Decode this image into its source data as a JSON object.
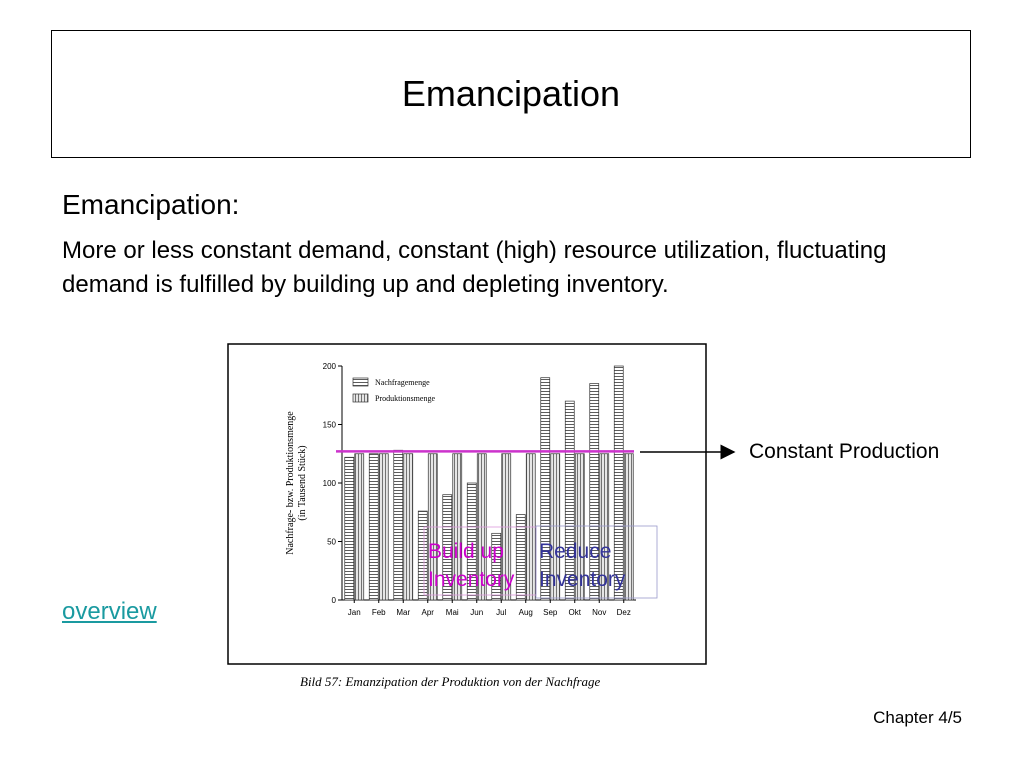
{
  "slide": {
    "title": "Emancipation",
    "heading": "Emancipation:",
    "body": "More or less constant demand, constant (high) resource utilization, fluctuating demand is fulfilled by building up and depleting inventory.",
    "link": "overview",
    "footer": "Chapter 4/5"
  },
  "annotations": {
    "constant_production": "Constant Production",
    "build_up_line1": "Build up",
    "build_up_line2": "Inventory",
    "reduce_line1": "Reduce",
    "reduce_line2": "Inventory",
    "build_up_color": "#cc00cc",
    "reduce_color": "#333399",
    "constant_line_color": "#cc33cc"
  },
  "figure": {
    "caption": "Bild 57: Emanzipation der Produktion von der Nachfrage"
  },
  "chart_data": {
    "type": "bar",
    "ylabel_line1": "Nachfrage- bzw. Produktionsmenge",
    "ylabel_line2": "(in Tausend Stück)",
    "xlabel": "",
    "ylim": [
      0,
      200
    ],
    "y_ticks": [
      0,
      50,
      100,
      150,
      200
    ],
    "categories": [
      "Jan",
      "Feb",
      "Mar",
      "Apr",
      "Mai",
      "Jun",
      "Jul",
      "Aug",
      "Sep",
      "Okt",
      "Nov",
      "Dez"
    ],
    "series": [
      {
        "name": "Nachfragemenge",
        "pattern": "horizontal-hatch",
        "values": [
          122,
          125,
          128,
          76,
          90,
          100,
          57,
          73,
          190,
          170,
          185,
          200
        ]
      },
      {
        "name": "Produktionsmenge",
        "pattern": "vertical-hatch",
        "values": [
          125,
          125,
          125,
          125,
          125,
          125,
          125,
          125,
          125,
          125,
          125,
          125
        ]
      }
    ],
    "constant_production_level": 127,
    "legend_position": "top-left"
  }
}
